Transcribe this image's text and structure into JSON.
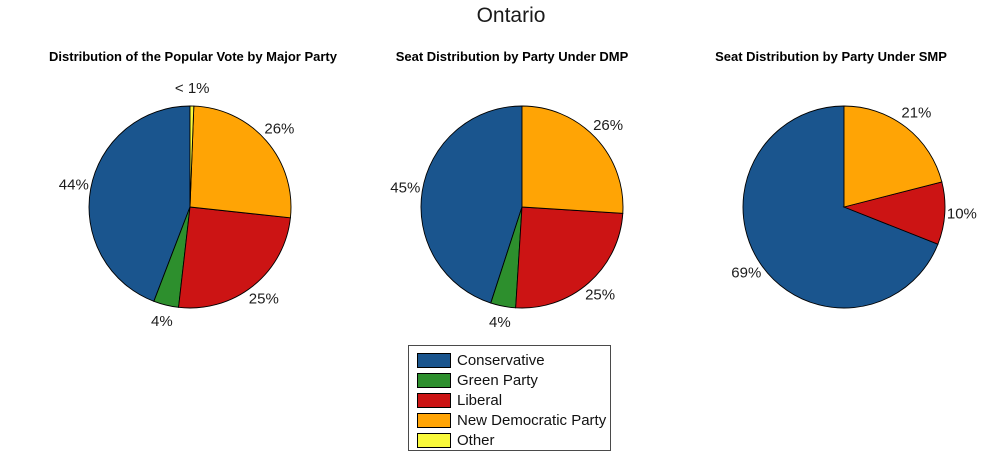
{
  "figure_title": "Ontario",
  "parties": [
    {
      "name": "Conservative",
      "color": "#1A558E"
    },
    {
      "name": "Green Party",
      "color": "#2D8F2D"
    },
    {
      "name": "Liberal",
      "color": "#CC1414"
    },
    {
      "name": "New Democratic Party",
      "color": "#FFA405"
    },
    {
      "name": "Other",
      "color": "#F9F93B"
    }
  ],
  "chart_data": [
    {
      "type": "pie",
      "title": "Distribution of the Popular Vote by Major Party",
      "start_angle_deg": 90,
      "direction": "counterclockwise",
      "slices": [
        {
          "party": "Conservative",
          "label": "44%",
          "value": 44
        },
        {
          "party": "Green Party",
          "label": "4%",
          "value": 4
        },
        {
          "party": "Liberal",
          "label": "25%",
          "value": 25
        },
        {
          "party": "New Democratic Party",
          "label": "26%",
          "value": 26
        },
        {
          "party": "Other",
          "label": "< 1%",
          "value": 0.6
        }
      ]
    },
    {
      "type": "pie",
      "title": "Seat Distribution by Party Under DMP",
      "start_angle_deg": 90,
      "direction": "counterclockwise",
      "slices": [
        {
          "party": "Conservative",
          "label": "45%",
          "value": 45
        },
        {
          "party": "Green Party",
          "label": "4%",
          "value": 4
        },
        {
          "party": "Liberal",
          "label": "25%",
          "value": 25
        },
        {
          "party": "New Democratic Party",
          "label": "26%",
          "value": 26
        }
      ]
    },
    {
      "type": "pie",
      "title": "Seat Distribution by Party Under SMP",
      "start_angle_deg": 90,
      "direction": "counterclockwise",
      "slices": [
        {
          "party": "Conservative",
          "label": "69%",
          "value": 69
        },
        {
          "party": "Liberal",
          "label": "10%",
          "value": 10
        },
        {
          "party": "New Democratic Party",
          "label": "21%",
          "value": 21
        }
      ]
    }
  ],
  "legend": {
    "position": "bottom-center",
    "border": true,
    "entries": [
      "Conservative",
      "Green Party",
      "Liberal",
      "New Democratic Party",
      "Other"
    ]
  }
}
